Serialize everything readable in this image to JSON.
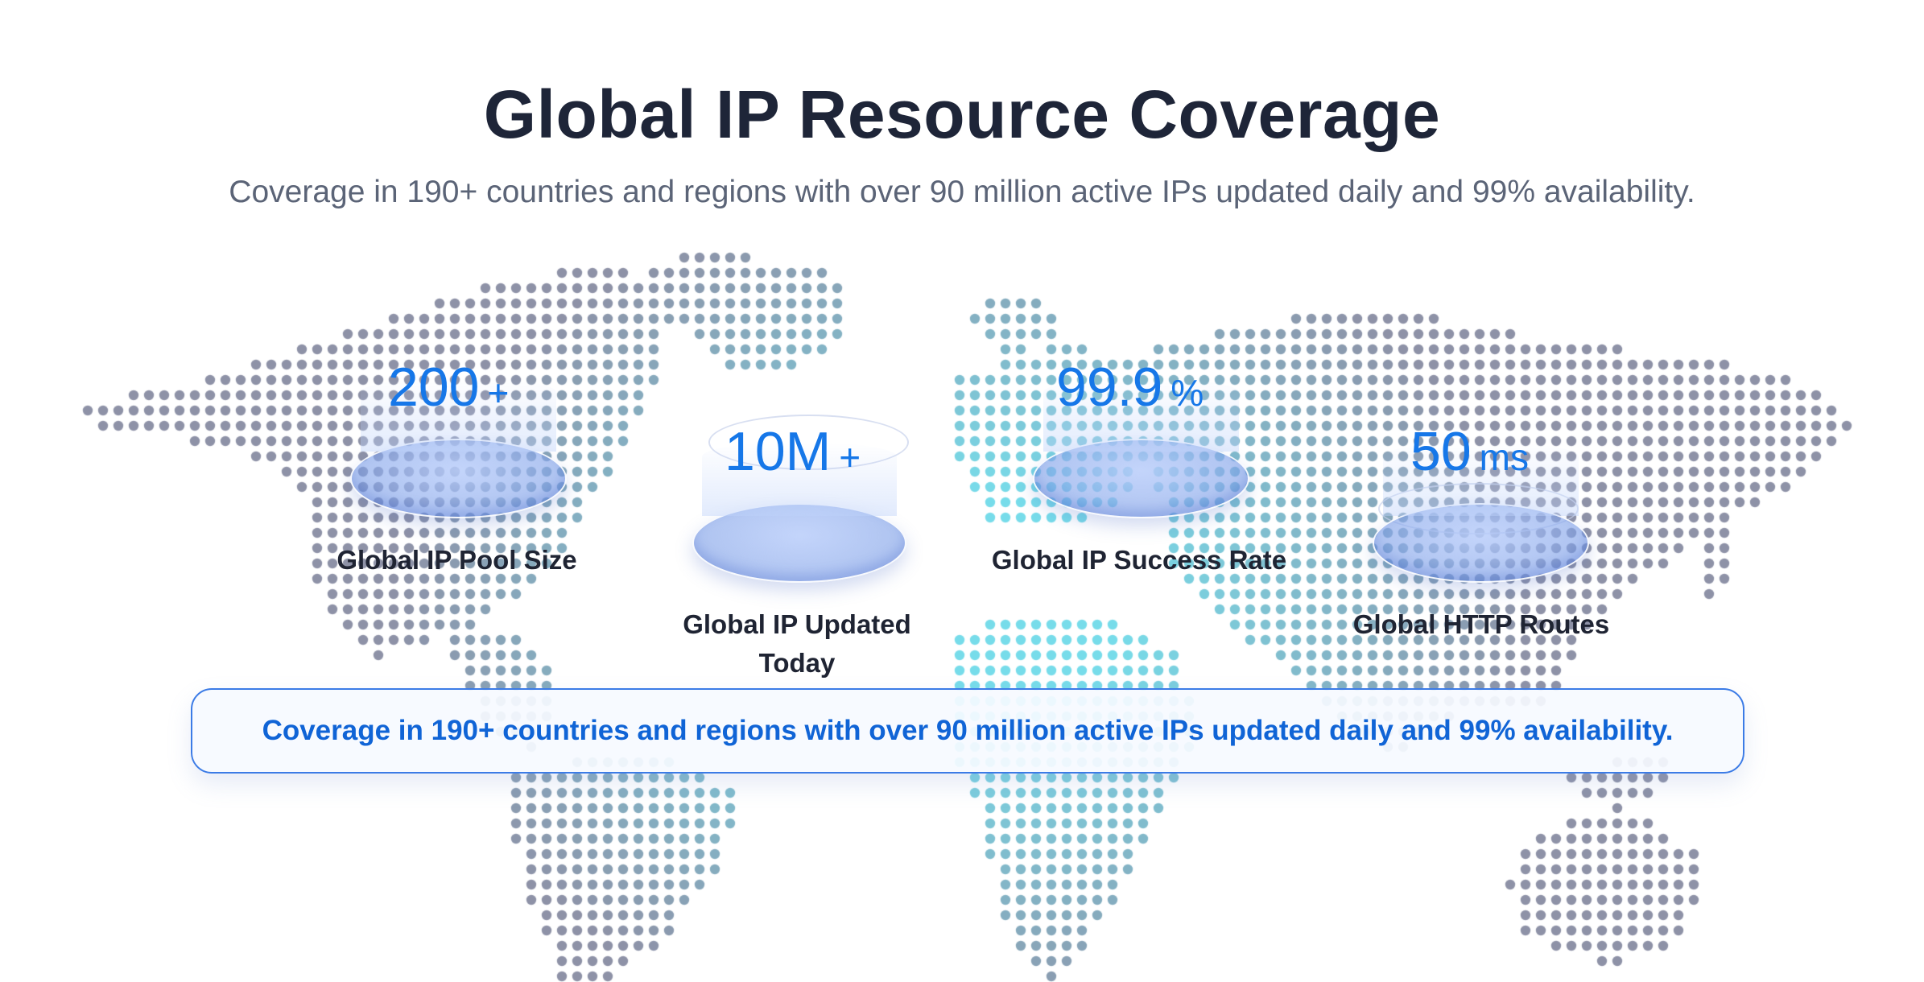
{
  "title": "Global IP Resource Coverage",
  "subtitle": "Coverage in 190+ countries and regions with over 90 million active IPs updated daily and 99% availability.",
  "stats": [
    {
      "value": "200",
      "unit": "+",
      "label": "Global IP Pool Size"
    },
    {
      "value": "10M",
      "unit": "+",
      "label": "Global IP Updated Today"
    },
    {
      "value": "99.9",
      "unit": "%",
      "label": "Global IP Success Rate"
    },
    {
      "value": "50",
      "unit": "ms",
      "label": "Global HTTP Routes"
    }
  ],
  "banner": "Coverage in 190+ countries and regions with over 90 million active IPs updated daily and 99% availability.",
  "colors": {
    "title": "#1e2538",
    "accent": "#1677e8",
    "banner_text": "#1064d6",
    "map_grey": "#7a7f98",
    "map_teal": "#5fd6e6"
  }
}
